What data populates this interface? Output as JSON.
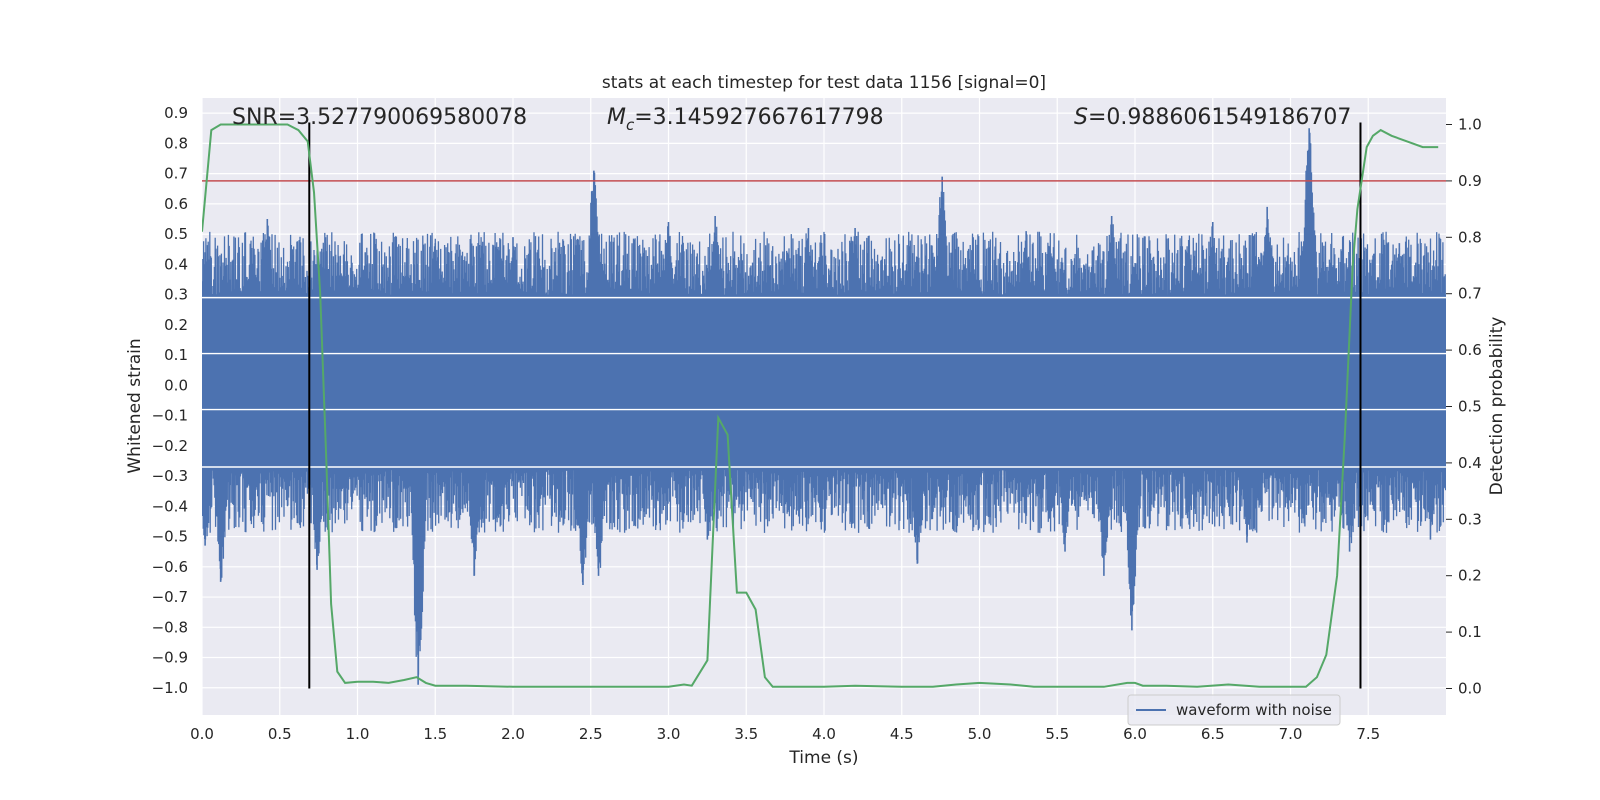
{
  "chart_data": {
    "type": "line",
    "title": "stats at each timestep for test data 1156 [signal=0]",
    "xlabel": "Time (s)",
    "ylabel": "Whitened strain",
    "y2label": "Detection probability",
    "xlim": [
      0.0,
      8.0
    ],
    "ylim": [
      -1.09,
      0.95
    ],
    "y2lim": [
      -0.047,
      1.047
    ],
    "grid": true,
    "x_ticks": [
      "0.0",
      "0.5",
      "1.0",
      "1.5",
      "2.0",
      "2.5",
      "3.0",
      "3.5",
      "4.0",
      "4.5",
      "5.0",
      "5.5",
      "6.0",
      "6.5",
      "7.0",
      "7.5"
    ],
    "y_ticks": [
      "0.9",
      "0.8",
      "0.7",
      "0.6",
      "0.5",
      "0.4",
      "0.3",
      "0.2",
      "0.1",
      "0.0",
      "−0.1",
      "−0.2",
      "−0.3",
      "−0.4",
      "−0.5",
      "−0.6",
      "−0.7",
      "−0.8",
      "−0.9",
      "−1.0"
    ],
    "y2_ticks": [
      "1.0",
      "0.9",
      "0.8",
      "0.7",
      "0.6",
      "0.5",
      "0.4",
      "0.3",
      "0.2",
      "0.1",
      "0.0"
    ],
    "annotations": {
      "snr": "SNR=3.527790069580078",
      "mc_prefix": "M",
      "mc_sub": "c",
      "mc_value": "=3.145927667617798",
      "s_prefix": "S",
      "s_value": "=0.9886061549186707"
    },
    "legend": {
      "position": "lower-right",
      "entries": [
        "waveform with noise"
      ]
    },
    "threshold": {
      "value": 0.9,
      "axis": "right",
      "color": "#c44e52"
    },
    "vlines": {
      "x": [
        0.69,
        7.45
      ],
      "color": "#000000"
    },
    "band_lines_strain": [
      0.29,
      0.105,
      -0.08,
      -0.27
    ],
    "series": [
      {
        "name": "waveform with noise",
        "axis": "left",
        "color": "#4c72b0",
        "core_range": [
          -0.28,
          0.3
        ],
        "peaks": [
          {
            "x": 0.02,
            "y": 0.44
          },
          {
            "x": 0.12,
            "y": 0.36
          },
          {
            "x": 0.42,
            "y": 0.55
          },
          {
            "x": 0.58,
            "y": 0.45
          },
          {
            "x": 0.78,
            "y": 0.44
          },
          {
            "x": 1.05,
            "y": 0.44
          },
          {
            "x": 1.5,
            "y": 0.47
          },
          {
            "x": 2.0,
            "y": 0.49
          },
          {
            "x": 2.52,
            "y": 0.71
          },
          {
            "x": 3.0,
            "y": 0.54
          },
          {
            "x": 3.3,
            "y": 0.56
          },
          {
            "x": 3.9,
            "y": 0.52
          },
          {
            "x": 4.2,
            "y": 0.52
          },
          {
            "x": 4.76,
            "y": 0.69
          },
          {
            "x": 5.3,
            "y": 0.51
          },
          {
            "x": 5.85,
            "y": 0.56
          },
          {
            "x": 6.5,
            "y": 0.54
          },
          {
            "x": 6.85,
            "y": 0.59
          },
          {
            "x": 7.12,
            "y": 0.85
          },
          {
            "x": 7.7,
            "y": 0.47
          }
        ],
        "troughs": [
          {
            "x": 0.02,
            "y": -0.53
          },
          {
            "x": 0.12,
            "y": -0.65
          },
          {
            "x": 0.55,
            "y": -0.4
          },
          {
            "x": 0.74,
            "y": -0.61
          },
          {
            "x": 1.39,
            "y": -0.99
          },
          {
            "x": 1.75,
            "y": -0.63
          },
          {
            "x": 2.45,
            "y": -0.66
          },
          {
            "x": 2.55,
            "y": -0.63
          },
          {
            "x": 3.25,
            "y": -0.51
          },
          {
            "x": 4.6,
            "y": -0.59
          },
          {
            "x": 5.55,
            "y": -0.55
          },
          {
            "x": 5.8,
            "y": -0.63
          },
          {
            "x": 5.98,
            "y": -0.81
          },
          {
            "x": 6.72,
            "y": -0.52
          },
          {
            "x": 7.38,
            "y": -0.55
          },
          {
            "x": 7.9,
            "y": -0.51
          }
        ]
      },
      {
        "name": "",
        "axis": "right",
        "color": "#55a868",
        "points": [
          [
            0.0,
            0.81
          ],
          [
            0.06,
            0.99
          ],
          [
            0.12,
            1.0
          ],
          [
            0.3,
            1.0
          ],
          [
            0.55,
            1.0
          ],
          [
            0.62,
            0.99
          ],
          [
            0.68,
            0.97
          ],
          [
            0.72,
            0.88
          ],
          [
            0.76,
            0.7
          ],
          [
            0.8,
            0.4
          ],
          [
            0.83,
            0.15
          ],
          [
            0.87,
            0.03
          ],
          [
            0.92,
            0.01
          ],
          [
            1.0,
            0.012
          ],
          [
            1.1,
            0.012
          ],
          [
            1.2,
            0.01
          ],
          [
            1.3,
            0.015
          ],
          [
            1.38,
            0.02
          ],
          [
            1.44,
            0.01
          ],
          [
            1.5,
            0.005
          ],
          [
            1.7,
            0.005
          ],
          [
            2.0,
            0.003
          ],
          [
            2.5,
            0.003
          ],
          [
            3.0,
            0.003
          ],
          [
            3.1,
            0.007
          ],
          [
            3.15,
            0.005
          ],
          [
            3.25,
            0.05
          ],
          [
            3.32,
            0.48
          ],
          [
            3.38,
            0.45
          ],
          [
            3.44,
            0.17
          ],
          [
            3.5,
            0.17
          ],
          [
            3.56,
            0.14
          ],
          [
            3.62,
            0.02
          ],
          [
            3.67,
            0.003
          ],
          [
            3.8,
            0.003
          ],
          [
            4.0,
            0.003
          ],
          [
            4.2,
            0.005
          ],
          [
            4.5,
            0.003
          ],
          [
            4.7,
            0.003
          ],
          [
            4.85,
            0.007
          ],
          [
            5.0,
            0.01
          ],
          [
            5.2,
            0.007
          ],
          [
            5.35,
            0.003
          ],
          [
            5.55,
            0.003
          ],
          [
            5.8,
            0.003
          ],
          [
            5.95,
            0.01
          ],
          [
            6.0,
            0.01
          ],
          [
            6.05,
            0.005
          ],
          [
            6.2,
            0.005
          ],
          [
            6.4,
            0.003
          ],
          [
            6.6,
            0.007
          ],
          [
            6.8,
            0.003
          ],
          [
            7.0,
            0.003
          ],
          [
            7.1,
            0.003
          ],
          [
            7.17,
            0.02
          ],
          [
            7.23,
            0.06
          ],
          [
            7.3,
            0.2
          ],
          [
            7.35,
            0.45
          ],
          [
            7.4,
            0.75
          ],
          [
            7.43,
            0.85
          ],
          [
            7.49,
            0.96
          ],
          [
            7.53,
            0.98
          ],
          [
            7.58,
            0.99
          ],
          [
            7.65,
            0.98
          ],
          [
            7.75,
            0.97
          ],
          [
            7.85,
            0.96
          ],
          [
            7.95,
            0.96
          ]
        ]
      }
    ]
  }
}
